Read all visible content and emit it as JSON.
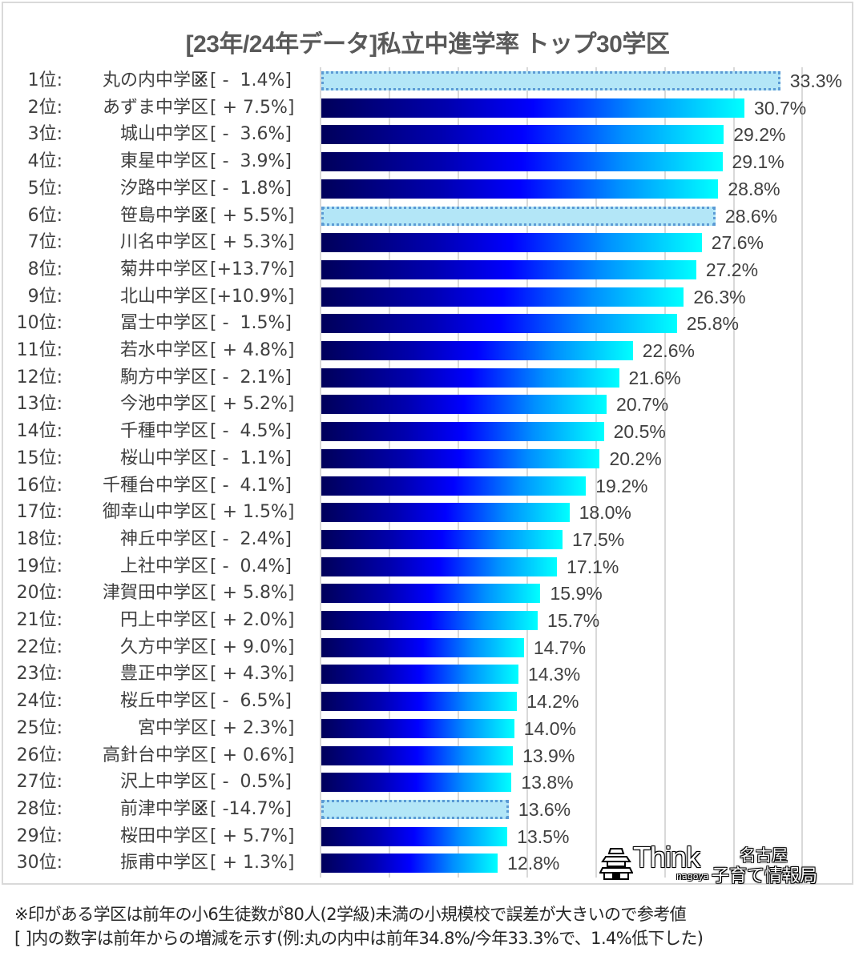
{
  "title": "[23年/24年データ]私立中進学率 トップ30学区",
  "chart_data": {
    "type": "bar",
    "orientation": "horizontal",
    "title": "[23年/24年データ]私立中進学率 トップ30学区",
    "xlabel": "",
    "ylabel": "",
    "xlim": [
      0,
      35
    ],
    "grid": true,
    "grid_step": 5,
    "legend": null,
    "categories": [
      "丸の内中学区",
      "あずま中学区",
      "城山中学区",
      "東星中学区",
      "汐路中学区",
      "笹島中学区",
      "川名中学区",
      "菊井中学区",
      "北山中学区",
      "冨士中学区",
      "若水中学区",
      "駒方中学区",
      "今池中学区",
      "千種中学区",
      "桜山中学区",
      "千種台中学区",
      "御幸山中学区",
      "神丘中学区",
      "上社中学区",
      "津賀田中学区",
      "円上中学区",
      "久方中学区",
      "豊正中学区",
      "桜丘中学区",
      "宮中学区",
      "高針台中学区",
      "沢上中学区",
      "前津中学区",
      "桜田中学区",
      "振甫中学区"
    ],
    "values": [
      33.3,
      30.7,
      29.2,
      29.1,
      28.8,
      28.6,
      27.6,
      27.2,
      26.3,
      25.8,
      22.6,
      21.6,
      20.7,
      20.5,
      20.2,
      19.2,
      18.0,
      17.5,
      17.1,
      15.9,
      15.7,
      14.7,
      14.3,
      14.2,
      14.0,
      13.9,
      13.8,
      13.6,
      13.5,
      12.8
    ],
    "change_from_prev_year": [
      -1.4,
      7.5,
      -3.6,
      -3.9,
      -1.8,
      5.5,
      5.3,
      13.7,
      10.9,
      -1.5,
      4.8,
      -2.1,
      5.2,
      -4.5,
      -1.1,
      -4.1,
      1.5,
      -2.4,
      -0.4,
      5.8,
      2.0,
      9.0,
      4.3,
      -6.5,
      2.3,
      0.6,
      -0.5,
      -14.7,
      5.7,
      1.3
    ],
    "small_school_flag": [
      true,
      false,
      false,
      false,
      false,
      true,
      false,
      false,
      false,
      false,
      false,
      false,
      false,
      false,
      false,
      false,
      false,
      false,
      false,
      false,
      false,
      false,
      false,
      false,
      false,
      false,
      false,
      true,
      false,
      false
    ],
    "value_suffix": "%"
  },
  "rows": [
    {
      "rank": "1位:",
      "school": "丸の内中学区",
      "mark": "※",
      "delta": "[ -  1.4%]",
      "value": "33.3%",
      "pct": 33.3,
      "small": true
    },
    {
      "rank": "2位:",
      "school": "あずま中学区",
      "mark": "",
      "delta": "[ + 7.5%]",
      "value": "30.7%",
      "pct": 30.7,
      "small": false
    },
    {
      "rank": "3位:",
      "school": "城山中学区",
      "mark": "",
      "delta": "[ -  3.6%]",
      "value": "29.2%",
      "pct": 29.2,
      "small": false
    },
    {
      "rank": "4位:",
      "school": "東星中学区",
      "mark": "",
      "delta": "[ -  3.9%]",
      "value": "29.1%",
      "pct": 29.1,
      "small": false
    },
    {
      "rank": "5位:",
      "school": "汐路中学区",
      "mark": "",
      "delta": "[ -  1.8%]",
      "value": "28.8%",
      "pct": 28.8,
      "small": false
    },
    {
      "rank": "6位:",
      "school": "笹島中学区",
      "mark": "※",
      "delta": "[ + 5.5%]",
      "value": "28.6%",
      "pct": 28.6,
      "small": true
    },
    {
      "rank": "7位:",
      "school": "川名中学区",
      "mark": "",
      "delta": "[ + 5.3%]",
      "value": "27.6%",
      "pct": 27.6,
      "small": false
    },
    {
      "rank": "8位:",
      "school": "菊井中学区",
      "mark": "",
      "delta": "[+13.7%]",
      "value": "27.2%",
      "pct": 27.2,
      "small": false
    },
    {
      "rank": "9位:",
      "school": "北山中学区",
      "mark": "",
      "delta": "[+10.9%]",
      "value": "26.3%",
      "pct": 26.3,
      "small": false
    },
    {
      "rank": "10位:",
      "school": "冨士中学区",
      "mark": "",
      "delta": "[ -  1.5%]",
      "value": "25.8%",
      "pct": 25.8,
      "small": false
    },
    {
      "rank": "11位:",
      "school": "若水中学区",
      "mark": "",
      "delta": "[ + 4.8%]",
      "value": "22.6%",
      "pct": 22.6,
      "small": false
    },
    {
      "rank": "12位:",
      "school": "駒方中学区",
      "mark": "",
      "delta": "[ -  2.1%]",
      "value": "21.6%",
      "pct": 21.6,
      "small": false
    },
    {
      "rank": "13位:",
      "school": "今池中学区",
      "mark": "",
      "delta": "[ + 5.2%]",
      "value": "20.7%",
      "pct": 20.7,
      "small": false
    },
    {
      "rank": "14位:",
      "school": "千種中学区",
      "mark": "",
      "delta": "[ -  4.5%]",
      "value": "20.5%",
      "pct": 20.5,
      "small": false
    },
    {
      "rank": "15位:",
      "school": "桜山中学区",
      "mark": "",
      "delta": "[ -  1.1%]",
      "value": "20.2%",
      "pct": 20.2,
      "small": false
    },
    {
      "rank": "16位:",
      "school": "千種台中学区",
      "mark": "",
      "delta": "[ -  4.1%]",
      "value": "19.2%",
      "pct": 19.2,
      "small": false
    },
    {
      "rank": "17位:",
      "school": "御幸山中学区",
      "mark": "",
      "delta": "[ + 1.5%]",
      "value": "18.0%",
      "pct": 18.0,
      "small": false
    },
    {
      "rank": "18位:",
      "school": "神丘中学区",
      "mark": "",
      "delta": "[ -  2.4%]",
      "value": "17.5%",
      "pct": 17.5,
      "small": false
    },
    {
      "rank": "19位:",
      "school": "上社中学区",
      "mark": "",
      "delta": "[ -  0.4%]",
      "value": "17.1%",
      "pct": 17.1,
      "small": false
    },
    {
      "rank": "20位:",
      "school": "津賀田中学区",
      "mark": "",
      "delta": "[ + 5.8%]",
      "value": "15.9%",
      "pct": 15.9,
      "small": false
    },
    {
      "rank": "21位:",
      "school": "円上中学区",
      "mark": "",
      "delta": "[ + 2.0%]",
      "value": "15.7%",
      "pct": 15.7,
      "small": false
    },
    {
      "rank": "22位:",
      "school": "久方中学区",
      "mark": "",
      "delta": "[ + 9.0%]",
      "value": "14.7%",
      "pct": 14.7,
      "small": false
    },
    {
      "rank": "23位:",
      "school": "豊正中学区",
      "mark": "",
      "delta": "[ + 4.3%]",
      "value": "14.3%",
      "pct": 14.3,
      "small": false
    },
    {
      "rank": "24位:",
      "school": "桜丘中学区",
      "mark": "",
      "delta": "[ -  6.5%]",
      "value": "14.2%",
      "pct": 14.2,
      "small": false
    },
    {
      "rank": "25位:",
      "school": "宮中学区",
      "mark": "",
      "delta": "[ + 2.3%]",
      "value": "14.0%",
      "pct": 14.0,
      "small": false
    },
    {
      "rank": "26位:",
      "school": "高針台中学区",
      "mark": "",
      "delta": "[ + 0.6%]",
      "value": "13.9%",
      "pct": 13.9,
      "small": false
    },
    {
      "rank": "27位:",
      "school": "沢上中学区",
      "mark": "",
      "delta": "[ -  0.5%]",
      "value": "13.8%",
      "pct": 13.8,
      "small": false
    },
    {
      "rank": "28位:",
      "school": "前津中学区",
      "mark": "※",
      "delta": "[ -14.7%]",
      "value": "13.6%",
      "pct": 13.6,
      "small": true
    },
    {
      "rank": "29位:",
      "school": "桜田中学区",
      "mark": "",
      "delta": "[ + 5.7%]",
      "value": "13.5%",
      "pct": 13.5,
      "small": false
    },
    {
      "rank": "30位:",
      "school": "振甫中学区",
      "mark": "",
      "delta": "[ + 1.3%]",
      "value": "12.8%",
      "pct": 12.8,
      "small": false
    }
  ],
  "logo": {
    "brand": "Think",
    "sub": "nagoya",
    "org_line1": "名古屋",
    "org_line2": "子育て情報局"
  },
  "footer": {
    "note1": "※印がある学区は前年の小6生徒数が80人(2学級)未満の小規模校で誤差が大きいので参考値",
    "note2": "[ ]内の数字は前年からの増減を示す(例:丸の内中は前年34.8%/今年33.3%で、1.4%低下した)"
  },
  "colors": {
    "bar_gradient_start": "#00005a",
    "bar_gradient_mid": "#0000ff",
    "bar_gradient_end": "#00ffff",
    "small_school_fill": "#b3e6f7",
    "small_school_border": "#5b9bd5",
    "gridline": "#d9d9d9",
    "text": "#404040"
  }
}
